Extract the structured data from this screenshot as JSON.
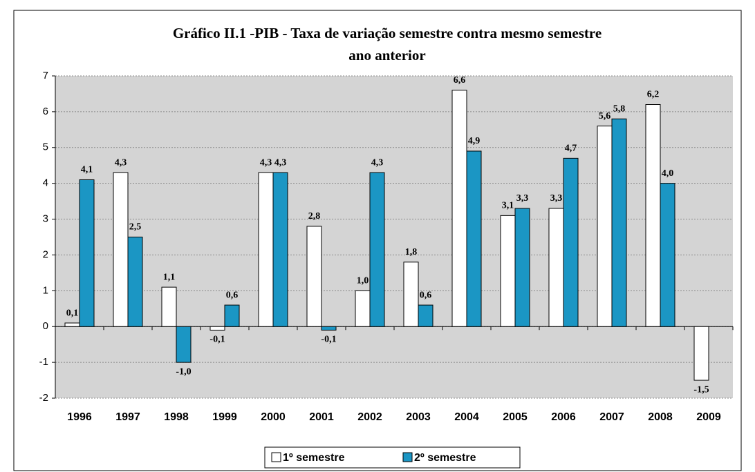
{
  "chart_data": {
    "type": "bar",
    "title": [
      "Gráfico II.1 -PIB  - Taxa  de variação semestre contra mesmo semestre",
      "ano anterior"
    ],
    "categories": [
      "1996",
      "1997",
      "1998",
      "1999",
      "2000",
      "2001",
      "2002",
      "2003",
      "2004",
      "2005",
      "2006",
      "2007",
      "2008",
      "2009"
    ],
    "series": [
      {
        "name": "1º semestre",
        "color": "#ffffff",
        "values": [
          0.1,
          4.3,
          1.1,
          -0.1,
          4.3,
          2.8,
          1.0,
          1.8,
          6.6,
          3.1,
          3.3,
          5.6,
          6.2,
          -1.5
        ],
        "value_labels": [
          "0,1",
          "4,3",
          "1,1",
          "-0,1",
          "4,3",
          "2,8",
          "1,0",
          "1,8",
          "6,6",
          "3,1",
          "3,3",
          "5,6",
          "6,2",
          "-1,5"
        ]
      },
      {
        "name": "2º semestre",
        "color": "#1b96c4",
        "values": [
          4.1,
          2.5,
          -1.0,
          0.6,
          4.3,
          -0.1,
          4.3,
          0.6,
          4.9,
          3.3,
          4.7,
          5.8,
          4.0,
          null
        ],
        "value_labels": [
          "4,1",
          "2,5",
          "-1,0",
          "0,6",
          "4,3",
          "-0,1",
          "4,3",
          "0,6",
          "4,9",
          "3,3",
          "4,7",
          "5,8",
          "4,0",
          null
        ]
      }
    ],
    "ylim": [
      -2,
      7
    ],
    "yticks": [
      -2,
      -1,
      0,
      1,
      2,
      3,
      4,
      5,
      6,
      7
    ],
    "grid": true,
    "legend": "bottom"
  }
}
